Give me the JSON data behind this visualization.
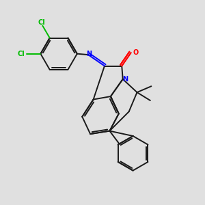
{
  "bg_color": "#e0e0e0",
  "bond_color": "#1a1a1a",
  "n_color": "#0000ff",
  "o_color": "#ff0000",
  "cl_color": "#00bb00",
  "lw": 1.4,
  "lw_dbl": 1.4,
  "figsize": [
    3.0,
    3.0
  ],
  "dpi": 100,
  "xlim": [
    0,
    10
  ],
  "ylim": [
    0,
    10
  ]
}
